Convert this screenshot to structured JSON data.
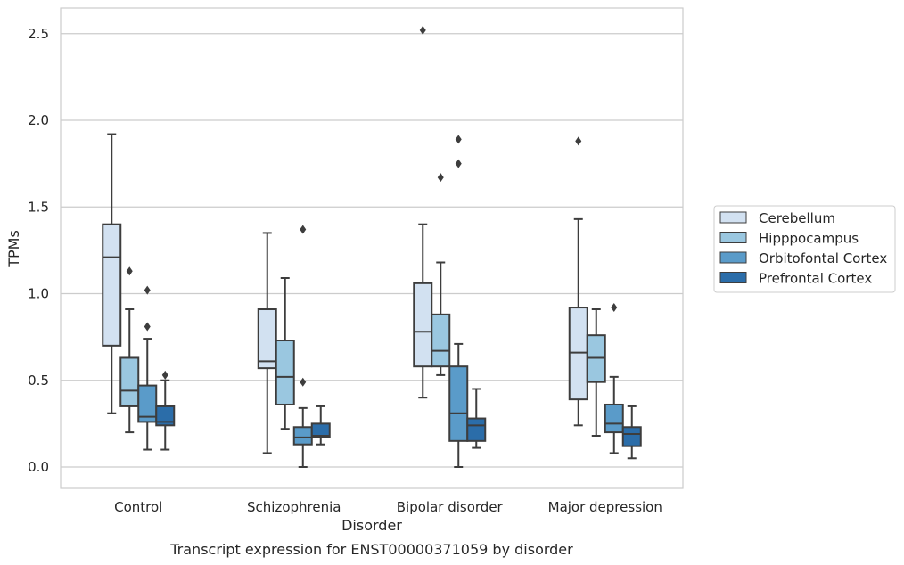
{
  "chart_data": {
    "type": "box",
    "title": "",
    "xlabel": "Disorder",
    "ylabel": "TPMs",
    "caption": "Transcript expression for ENST00000371059 by disorder",
    "ylim": [
      -0.12,
      2.65
    ],
    "yticks": [
      "0.0",
      "0.5",
      "1.0",
      "1.5",
      "2.0",
      "2.5"
    ],
    "grid": "horizontal",
    "legend_position": "right",
    "categories": [
      "Control",
      "Schizophrenia",
      "Bipolar disorder",
      "Major depression"
    ],
    "series": [
      {
        "name": "Cerebellum",
        "color": "#d2e1f1",
        "boxes": [
          {
            "min": 0.31,
            "q1": 0.7,
            "median": 1.21,
            "q3": 1.4,
            "max": 1.92,
            "outliers": []
          },
          {
            "min": 0.08,
            "q1": 0.57,
            "median": 0.61,
            "q3": 0.91,
            "max": 1.35,
            "outliers": []
          },
          {
            "min": 0.4,
            "q1": 0.58,
            "median": 0.78,
            "q3": 1.06,
            "max": 1.4,
            "outliers": [
              2.52
            ]
          },
          {
            "min": 0.24,
            "q1": 0.39,
            "median": 0.66,
            "q3": 0.92,
            "max": 1.43,
            "outliers": [
              1.88
            ]
          }
        ]
      },
      {
        "name": "Hipppocampus",
        "color": "#9ac7e0",
        "boxes": [
          {
            "min": 0.2,
            "q1": 0.35,
            "median": 0.44,
            "q3": 0.63,
            "max": 0.91,
            "outliers": [
              1.13
            ]
          },
          {
            "min": 0.22,
            "q1": 0.36,
            "median": 0.52,
            "q3": 0.73,
            "max": 1.09,
            "outliers": []
          },
          {
            "min": 0.53,
            "q1": 0.58,
            "median": 0.67,
            "q3": 0.88,
            "max": 1.18,
            "outliers": [
              1.67
            ]
          },
          {
            "min": 0.18,
            "q1": 0.49,
            "median": 0.63,
            "q3": 0.76,
            "max": 0.91,
            "outliers": []
          }
        ]
      },
      {
        "name": "Orbitofontal Cortex",
        "color": "#5a9bc9",
        "boxes": [
          {
            "min": 0.1,
            "q1": 0.26,
            "median": 0.29,
            "q3": 0.47,
            "max": 0.74,
            "outliers": [
              1.02,
              0.81
            ]
          },
          {
            "min": 0.0,
            "q1": 0.13,
            "median": 0.17,
            "q3": 0.23,
            "max": 0.34,
            "outliers": [
              0.49,
              1.37
            ]
          },
          {
            "min": 0.0,
            "q1": 0.15,
            "median": 0.31,
            "q3": 0.58,
            "max": 0.71,
            "outliers": [
              1.75,
              1.89
            ]
          },
          {
            "min": 0.08,
            "q1": 0.2,
            "median": 0.25,
            "q3": 0.36,
            "max": 0.52,
            "outliers": [
              0.92
            ]
          }
        ]
      },
      {
        "name": "Prefrontal Cortex",
        "color": "#2b6da9",
        "boxes": [
          {
            "min": 0.1,
            "q1": 0.24,
            "median": 0.26,
            "q3": 0.35,
            "max": 0.5,
            "outliers": [
              0.53
            ]
          },
          {
            "min": 0.13,
            "q1": 0.17,
            "median": 0.18,
            "q3": 0.25,
            "max": 0.35,
            "outliers": []
          },
          {
            "min": 0.11,
            "q1": 0.15,
            "median": 0.24,
            "q3": 0.28,
            "max": 0.45,
            "outliers": []
          },
          {
            "min": 0.05,
            "q1": 0.12,
            "median": 0.19,
            "q3": 0.23,
            "max": 0.35,
            "outliers": []
          }
        ]
      }
    ]
  }
}
